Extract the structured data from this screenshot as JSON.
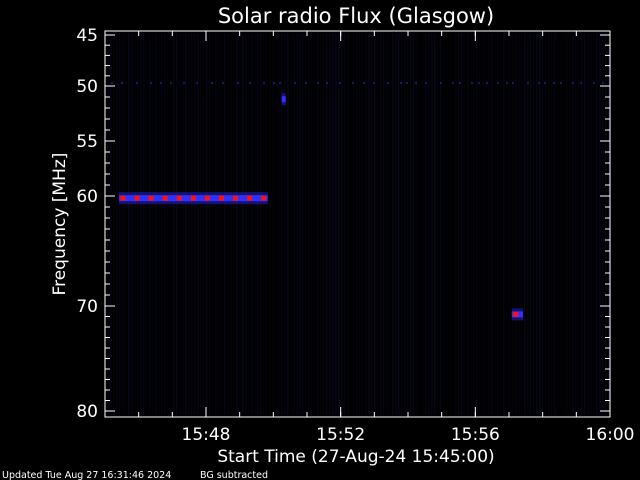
{
  "chart_data": {
    "type": "heatmap",
    "title": "Solar radio Flux (Glasgow)",
    "xlabel": "Start Time (27-Aug-24 15:45:00)",
    "ylabel": "Frequency [MHz]",
    "x_unit": "time of day",
    "xlim": [
      "15:45",
      "16:00"
    ],
    "y_ticks": [
      "45",
      "50",
      "55",
      "60",
      "70",
      "80"
    ],
    "x_ticks": [
      "15:48",
      "15:52",
      "15:56",
      "16:00"
    ],
    "y_axis_scale": "nonlinear (stretched 45-60 MHz)",
    "colors": {
      "background": "#000000",
      "axes": "#ffffff",
      "low": "#0000ff",
      "high": "#ff0000"
    },
    "bursts": [
      {
        "start": "15:45:25",
        "end": "15:49:50",
        "frequency_mhz": 60.2,
        "peak_color": "red"
      },
      {
        "start": "15:57:05",
        "end": "15:57:25",
        "frequency_mhz": 70.8,
        "peak_color": "red"
      },
      {
        "start": "15:50:15",
        "end": "15:50:20",
        "frequency_mhz": 51.2,
        "peak_color": "blue"
      }
    ]
  },
  "footer": {
    "updated": "Updated Tue Aug 27 16:31:46 2024",
    "note": "BG subtracted"
  }
}
